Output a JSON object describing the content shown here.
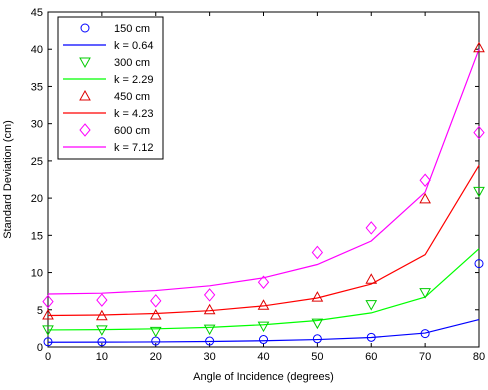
{
  "chart_data": {
    "type": "scatter",
    "xlabel": "Angle of Incidence (degrees)",
    "ylabel": "Standard Deviation (cm)",
    "xlim": [
      0,
      80
    ],
    "ylim": [
      0,
      45
    ],
    "xticks": [
      0,
      10,
      20,
      30,
      40,
      50,
      60,
      70,
      80
    ],
    "yticks": [
      0,
      5,
      10,
      15,
      20,
      25,
      30,
      35,
      40,
      45
    ],
    "grid": false,
    "legend_position": "top-left",
    "series": [
      {
        "name": "150 cm",
        "kind": "markers",
        "marker": "circle",
        "color": "#0000ff",
        "x": [
          0,
          10,
          20,
          30,
          40,
          50,
          60,
          70,
          80
        ],
        "y": [
          0.7,
          0.7,
          0.8,
          0.8,
          1.0,
          1.1,
          1.3,
          1.8,
          11.2
        ]
      },
      {
        "name": "k = 0.64",
        "kind": "line",
        "color": "#0000ff",
        "x": [
          0,
          10,
          20,
          30,
          40,
          50,
          60,
          70,
          80
        ],
        "y": [
          0.64,
          0.65,
          0.68,
          0.74,
          0.84,
          1.0,
          1.28,
          1.87,
          3.69
        ]
      },
      {
        "name": "300 cm",
        "kind": "markers",
        "marker": "triangle-down",
        "color": "#00cc00",
        "x": [
          0,
          10,
          20,
          30,
          40,
          50,
          60,
          70,
          80
        ],
        "y": [
          2.3,
          2.3,
          2.1,
          2.4,
          2.8,
          3.2,
          5.7,
          7.3,
          20.9
        ]
      },
      {
        "name": "k = 2.29",
        "kind": "line",
        "color": "#00ff00",
        "x": [
          0,
          10,
          20,
          30,
          40,
          50,
          60,
          70,
          80
        ],
        "y": [
          2.29,
          2.33,
          2.44,
          2.64,
          2.99,
          3.56,
          4.58,
          6.7,
          13.2
        ]
      },
      {
        "name": "450 cm",
        "kind": "markers",
        "marker": "triangle-up",
        "color": "#dd0000",
        "x": [
          0,
          10,
          20,
          30,
          40,
          50,
          60,
          70,
          80
        ],
        "y": [
          4.3,
          4.2,
          4.3,
          5.0,
          5.6,
          6.7,
          9.1,
          19.9,
          40.2
        ]
      },
      {
        "name": "k = 4.23",
        "kind": "line",
        "color": "#ff0000",
        "x": [
          0,
          10,
          20,
          30,
          40,
          50,
          60,
          70,
          80
        ],
        "y": [
          4.23,
          4.3,
          4.5,
          4.88,
          5.52,
          6.58,
          8.46,
          12.4,
          24.4
        ]
      },
      {
        "name": "600 cm",
        "kind": "markers",
        "marker": "diamond",
        "color": "#ff00ff",
        "x": [
          0,
          10,
          20,
          30,
          40,
          50,
          60,
          70,
          80
        ],
        "y": [
          6.1,
          6.3,
          6.2,
          7.0,
          8.7,
          12.7,
          16.0,
          22.4,
          28.8
        ]
      },
      {
        "name": "k = 7.12",
        "kind": "line",
        "color": "#ff00ff",
        "x": [
          0,
          10,
          20,
          30,
          40,
          50,
          60,
          70,
          80
        ],
        "y": [
          7.12,
          7.23,
          7.58,
          8.22,
          9.29,
          11.08,
          14.24,
          20.8,
          40.0
        ]
      }
    ]
  }
}
